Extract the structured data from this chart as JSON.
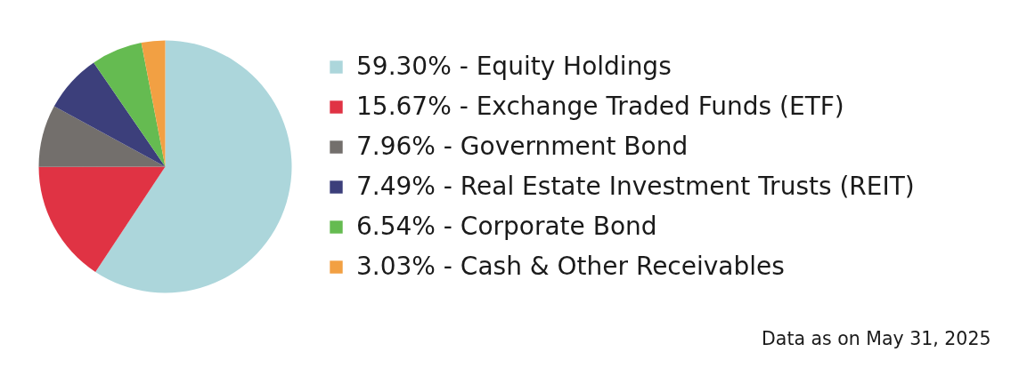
{
  "chart_data": {
    "type": "pie",
    "categories": [
      "59.30% - Equity Holdings",
      "15.67% - Exchange Traded Funds (ETF)",
      "7.96% - Government Bond",
      "7.49% - Real Estate Investment Trusts (REIT)",
      "6.54% - Corporate Bond",
      "3.03% - Cash & Other Receivables"
    ],
    "values": [
      59.3,
      15.67,
      7.96,
      7.49,
      6.54,
      3.03
    ],
    "colors": [
      "#acd6db",
      "#e03344",
      "#736f6c",
      "#3c3f7b",
      "#65bb51",
      "#f2a043"
    ],
    "legend": "right",
    "annotations": [
      "Data as on May 31, 2025"
    ]
  }
}
